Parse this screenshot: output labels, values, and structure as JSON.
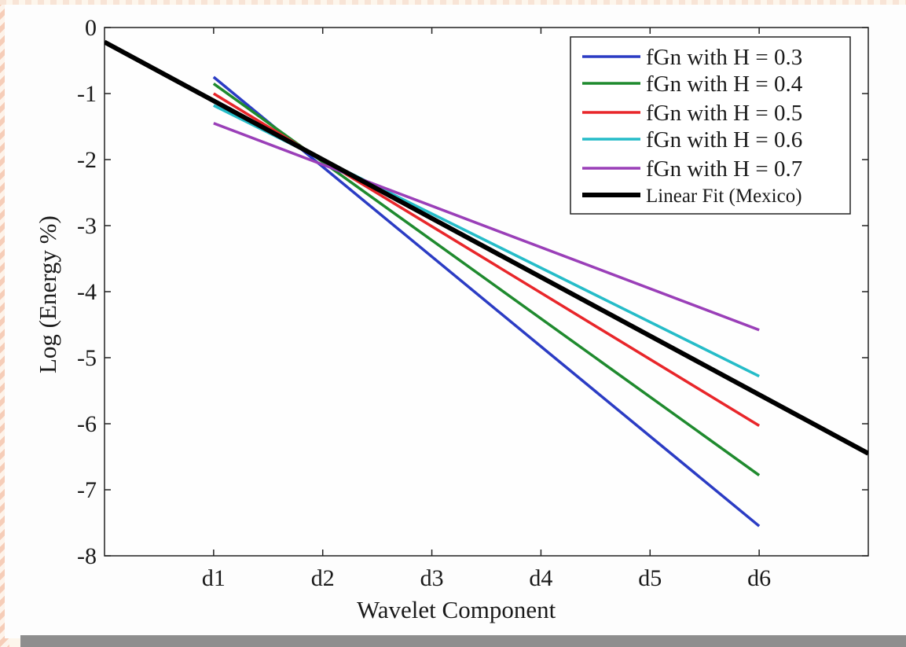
{
  "chart_data": {
    "type": "line",
    "xlabel": "Wavelet Component",
    "ylabel": "Log (Energy %)",
    "categories": [
      "d1",
      "d2",
      "d3",
      "d4",
      "d5",
      "d6"
    ],
    "y_ticks": [
      "0",
      "-1",
      "-2",
      "-3",
      "-4",
      "-5",
      "-6",
      "-7",
      "-8"
    ],
    "ylim": [
      -8,
      0
    ],
    "xlim": [
      0,
      7
    ],
    "grid": false,
    "legend_position": "top-right",
    "series": [
      {
        "name": "fGn with H = 0.3",
        "color": "#2b3cc4",
        "x": [
          1,
          6
        ],
        "y": [
          -0.75,
          -7.55
        ]
      },
      {
        "name": "fGn with H = 0.4",
        "color": "#1f8a2e",
        "x": [
          1,
          6
        ],
        "y": [
          -0.85,
          -6.78
        ]
      },
      {
        "name": "fGn with H = 0.5",
        "color": "#e8262a",
        "x": [
          1,
          6
        ],
        "y": [
          -1.0,
          -6.03
        ]
      },
      {
        "name": "fGn with H = 0.6",
        "color": "#25bcc8",
        "x": [
          1,
          6
        ],
        "y": [
          -1.18,
          -5.28
        ]
      },
      {
        "name": "fGn with H = 0.7",
        "color": "#9a3fb8",
        "x": [
          1,
          6
        ],
        "y": [
          -1.45,
          -4.58
        ]
      },
      {
        "name": "Linear Fit (Mexico)",
        "color": "#000000",
        "x": [
          0,
          7
        ],
        "y": [
          -0.22,
          -6.45
        ],
        "bold": true
      }
    ]
  }
}
